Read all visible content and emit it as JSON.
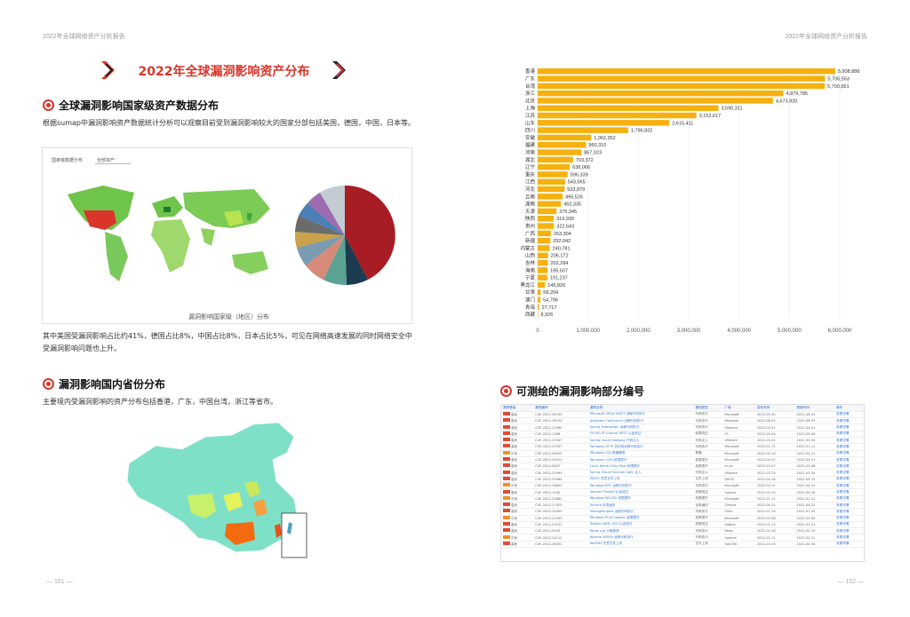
{
  "header_left": "2022年全球网络资产分析报告",
  "header_right": "2022年全球网络资产分析报告",
  "page_left": "— 151 —",
  "page_right": "— 152 —",
  "main_title": "2022年全球漏洞影响资产分布",
  "sec1": {
    "title": "全球漏洞影响国家级资产数据分布",
    "para": "根据sumap中漏洞影响资产数据统计分析可以观察目前受到漏洞影响较大的国家分部包括美国，德国，中国，日本等。",
    "caption": "漏洞影响国家级（地区）分布",
    "after": "其中美国受漏洞影响占比约41%，德国占比8%，中国占比8%，日本占比5%，可见在网络高速发展的同时网络安全中受漏洞影响问题也上升。",
    "map_toolbar": {
      "label": "国家级数据分布",
      "select": "全部资产"
    }
  },
  "sec2": {
    "title": "漏洞影响国内省份分布",
    "para": "主要境内受漏洞影响的资产分布包括香港，广东，中国台湾，浙江等省市。"
  },
  "sec3": {
    "title": "可测绘的漏洞影响部分编号"
  },
  "chart_data": {
    "type": "bar",
    "orientation": "horizontal",
    "categories": [
      "香港",
      "广东",
      "台湾",
      "浙江",
      "北京",
      "上海",
      "江苏",
      "山东",
      "四川",
      "安徽",
      "福建",
      "河南",
      "湖北",
      "辽宁",
      "重庆",
      "江西",
      "河北",
      "云南",
      "湖南",
      "天津",
      "陕西",
      "贵州",
      "广西",
      "新疆",
      "内蒙古",
      "山西",
      "吉林",
      "海南",
      "宁夏",
      "黑龙江",
      "甘肃",
      "澳门",
      "青海",
      "西藏"
    ],
    "labels": [
      "5,908,888",
      "5,706,563",
      "5,700,651",
      "4,879,785",
      "4,673,920",
      "3,590,311",
      "3,152,617",
      "2,615,411",
      "1,796,832",
      "1,062,352",
      "960,310",
      "867,023",
      "703,372",
      "638,066",
      "596,339",
      "543,565",
      "533,879",
      "495,526",
      "462,335",
      "375,345",
      "319,930",
      "322,643",
      "263,304",
      "252,042",
      "240,781",
      "206,172",
      "202,284",
      "195,507",
      "191,237",
      "145,826",
      "58,204",
      "54,796",
      "27,717",
      "8,926"
    ],
    "values": [
      5908888,
      5706563,
      5700651,
      4879785,
      4673920,
      3590311,
      3152617,
      2615411,
      1796832,
      1062352,
      960310,
      867023,
      703372,
      638066,
      596339,
      543565,
      533879,
      495526,
      462335,
      375345,
      319930,
      322643,
      263304,
      252042,
      240781,
      206172,
      202284,
      195507,
      191237,
      145826,
      58204,
      54796,
      27717,
      8926
    ],
    "xticks": [
      "0",
      "1,000,000",
      "2,000,000",
      "3,000,000",
      "4,000,000",
      "5,000,000",
      "6,000,000"
    ],
    "xlim": [
      0,
      6000000
    ],
    "bar_color": "#f5b10f",
    "grid": true
  },
  "table": {
    "headers": [
      "漏洞等级",
      "漏洞编号",
      "漏洞名称",
      "漏洞类型",
      "厂商",
      "发布时间",
      "更新时间",
      "操作"
    ],
    "rows": [
      {
        "lvl": "高危",
        "id": "CVE-2022-30190",
        "name": "Microsoft Office MSDT 远程代码执行",
        "type": "代码执行",
        "vendor": "Microsoft",
        "date": "2022-05-30",
        "upd": "2022-06-01",
        "op": "查看详情"
      },
      {
        "lvl": "高危",
        "id": "CVE-2022-26134",
        "name": "Atlassian Confluence 远程代码执行",
        "type": "代码执行",
        "vendor": "Atlassian",
        "date": "2022-06-02",
        "upd": "2022-06-03",
        "op": "查看详情"
      },
      {
        "lvl": "高危",
        "id": "CVE-2022-22965",
        "name": "Spring Framework 远程代码执行",
        "type": "代码执行",
        "vendor": "VMware",
        "date": "2022-03-31",
        "upd": "2022-04-01",
        "op": "查看详情"
      },
      {
        "lvl": "高危",
        "id": "CVE-2022-1388",
        "name": "F5 BIG-IP iControl REST 认证绕过",
        "type": "权限绕过",
        "vendor": "F5",
        "date": "2022-05-04",
        "upd": "2022-05-06",
        "op": "查看详情"
      },
      {
        "lvl": "高危",
        "id": "CVE-2022-22947",
        "name": "Spring Cloud Gateway 代码注入",
        "type": "代码注入",
        "vendor": "VMware",
        "date": "2022-03-01",
        "upd": "2022-03-03",
        "op": "查看详情"
      },
      {
        "lvl": "高危",
        "id": "CVE-2022-21907",
        "name": "Windows HTTP 协议栈远程代码执行",
        "type": "代码执行",
        "vendor": "Microsoft",
        "date": "2022-01-11",
        "upd": "2022-01-12",
        "op": "查看详情"
      },
      {
        "lvl": "中危",
        "id": "CVE-2022-26925",
        "name": "Windows LSA 欺骗漏洞",
        "type": "欺骗",
        "vendor": "Microsoft",
        "date": "2022-05-10",
        "upd": "2022-05-11",
        "op": "查看详情"
      },
      {
        "lvl": "高危",
        "id": "CVE-2022-24521",
        "name": "Windows CLFS 权限提升",
        "type": "权限提升",
        "vendor": "Microsoft",
        "date": "2022-04-12",
        "upd": "2022-04-13",
        "op": "查看详情"
      },
      {
        "lvl": "高危",
        "id": "CVE-2022-0847",
        "name": "Linux Kernel Dirty Pipe 权限提升",
        "type": "权限提升",
        "vendor": "Linux",
        "date": "2022-03-07",
        "upd": "2022-03-08",
        "op": "查看详情"
      },
      {
        "lvl": "高危",
        "id": "CVE-2022-22963",
        "name": "Spring Cloud Function SpEL 注入",
        "type": "代码注入",
        "vendor": "VMware",
        "date": "2022-03-29",
        "upd": "2022-03-30",
        "op": "查看详情"
      },
      {
        "lvl": "高危",
        "id": "CVE-2022-29464",
        "name": "WSO2 任意文件上传",
        "type": "文件上传",
        "vendor": "WSO2",
        "date": "2022-04-18",
        "upd": "2022-04-19",
        "op": "查看详情"
      },
      {
        "lvl": "中危",
        "id": "CVE-2022-26809",
        "name": "Windows RPC 远程代码执行",
        "type": "代码执行",
        "vendor": "Microsoft",
        "date": "2022-04-12",
        "upd": "2022-04-13",
        "op": "查看详情"
      },
      {
        "lvl": "高危",
        "id": "CVE-2022-1040",
        "name": "Sophos Firewall 认证绕过",
        "type": "权限绕过",
        "vendor": "Sophos",
        "date": "2022-03-25",
        "upd": "2022-03-26",
        "op": "查看详情"
      },
      {
        "lvl": "中危",
        "id": "CVE-2022-21882",
        "name": "Windows Win32k 权限提升",
        "type": "权限提升",
        "vendor": "Microsoft",
        "date": "2022-01-11",
        "upd": "2022-01-12",
        "op": "查看详情"
      },
      {
        "lvl": "高危",
        "id": "CVE-2022-27925",
        "name": "Zimbra 目录遍历",
        "type": "目录遍历",
        "vendor": "Zimbra",
        "date": "2022-04-21",
        "upd": "2022-04-22",
        "op": "查看详情"
      },
      {
        "lvl": "高危",
        "id": "CVE-2022-35405",
        "name": "ManageEngine 远程代码执行",
        "type": "代码执行",
        "vendor": "Zoho",
        "date": "2022-07-19",
        "upd": "2022-07-20",
        "op": "查看详情"
      },
      {
        "lvl": "中危",
        "id": "CVE-2022-21999",
        "name": "Windows Print Spooler 权限提升",
        "type": "权限提升",
        "vendor": "Microsoft",
        "date": "2022-02-08",
        "upd": "2022-02-09",
        "op": "查看详情"
      },
      {
        "lvl": "高危",
        "id": "CVE-2022-23131",
        "name": "Zabbix SAML SSO 认证绕过",
        "type": "权限绕过",
        "vendor": "Zabbix",
        "date": "2022-01-13",
        "upd": "2022-01-14",
        "op": "查看详情"
      },
      {
        "lvl": "高危",
        "id": "CVE-2022-0543",
        "name": "Redis Lua 沙箱逃逸",
        "type": "代码执行",
        "vendor": "Redis",
        "date": "2022-02-18",
        "upd": "2022-02-19",
        "op": "查看详情"
      },
      {
        "lvl": "中危",
        "id": "CVE-2022-24112",
        "name": "Apache APISIX 远程代码执行",
        "type": "代码执行",
        "vendor": "Apache",
        "date": "2022-02-11",
        "upd": "2022-02-12",
        "op": "查看详情"
      },
      {
        "lvl": "高危",
        "id": "CVE-2022-26352",
        "name": "dotCMS 任意文件上传",
        "type": "文件上传",
        "vendor": "dotCMS",
        "date": "2022-03-29",
        "upd": "2022-03-30",
        "op": "查看详情"
      }
    ]
  },
  "colors": {
    "accent": "#d9352a",
    "bar": "#f5b10f"
  }
}
